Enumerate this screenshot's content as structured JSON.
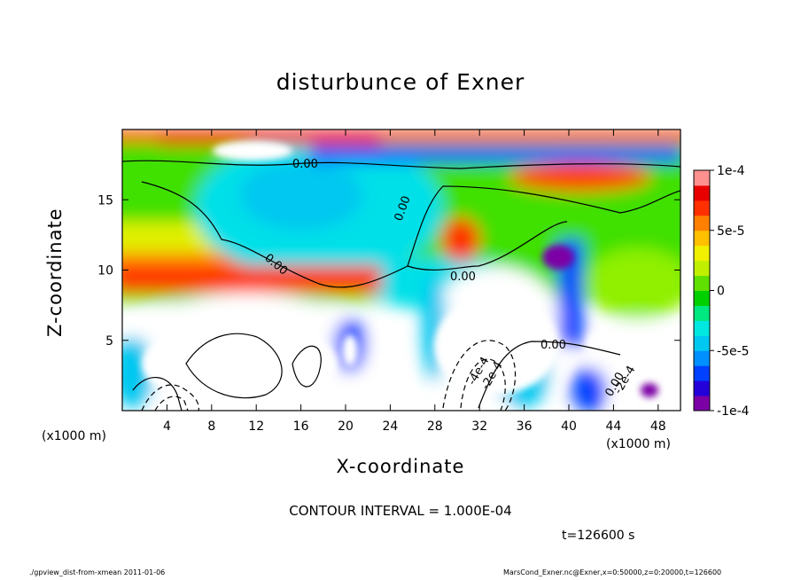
{
  "page": {
    "title": "disturbunce of Exner",
    "contour_interval": "CONTOUR INTERVAL = 1.000E-04",
    "time_label": "t=126600 s",
    "footer_left": "./gpview_dist-from-xmean  2011-01-06",
    "footer_right": "MarsCond_Exner.nc@Exner,x=0:50000,z=0:20000,t=126600"
  },
  "chart_data": {
    "type": "heatmap",
    "title": "disturbunce of Exner",
    "xlabel": "X-coordinate",
    "ylabel": "Z-coordinate",
    "x_unit": "(x1000 m)",
    "y_unit": "(x1000 m)",
    "xlim": [
      0,
      50
    ],
    "ylim": [
      0,
      20
    ],
    "x_ticks": [
      "4",
      "8",
      "12",
      "16",
      "20",
      "24",
      "28",
      "32",
      "36",
      "40",
      "44",
      "48"
    ],
    "y_ticks": [
      "5",
      "10",
      "15"
    ],
    "colorbar": {
      "range": [
        -0.0001,
        0.0001
      ],
      "tick_labels": [
        "1e-4",
        "5e-5",
        "0",
        "-5e-5",
        "-1e-4"
      ],
      "colors": [
        "#7b00a6",
        "#2400d9",
        "#0040ff",
        "#0090ff",
        "#00c8f0",
        "#00e8e0",
        "#00e880",
        "#00d000",
        "#60e000",
        "#c0f000",
        "#f0f000",
        "#ffc000",
        "#ff8000",
        "#ff3000",
        "#e80000",
        "#ff9090"
      ]
    },
    "contour_labels": [
      "0.00",
      "0.00",
      "0.00",
      "0.00",
      "0.00",
      "0.00",
      "-4e-4",
      "-2e-4",
      "-2e-4"
    ],
    "grid": false,
    "legend": "colorbar-right"
  }
}
